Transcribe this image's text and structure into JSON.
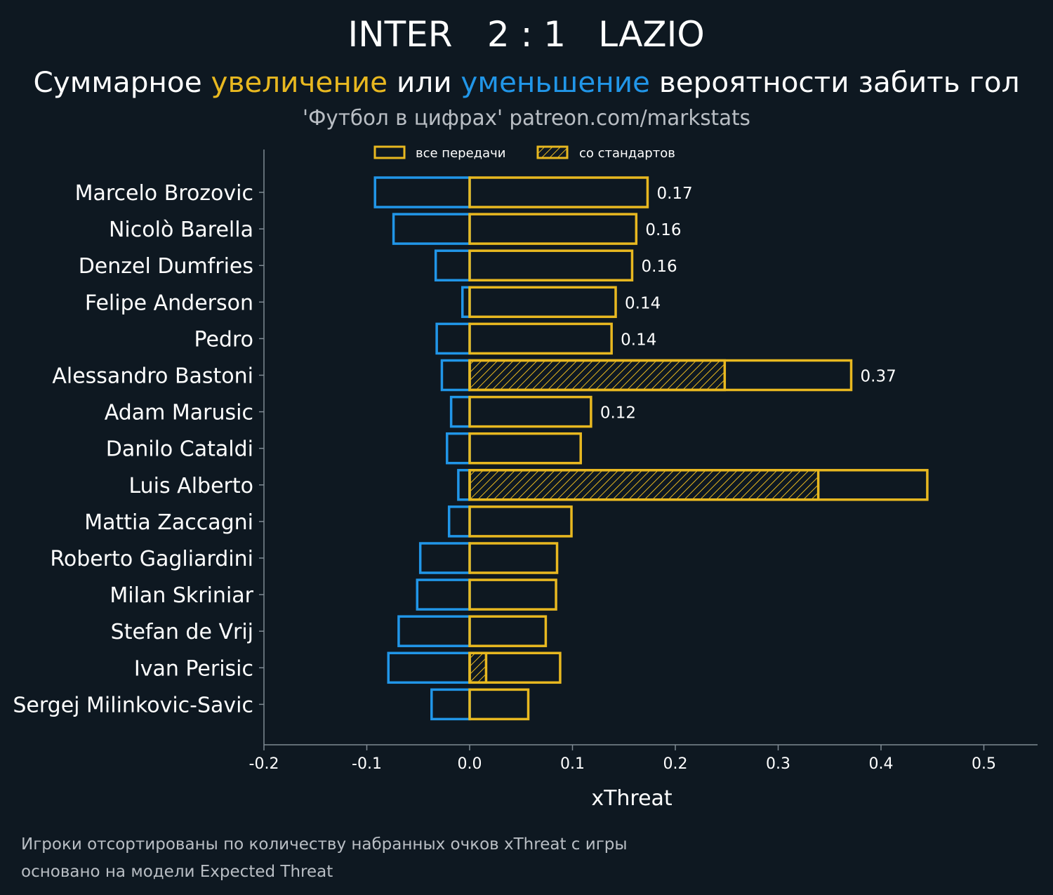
{
  "header": {
    "team_home": "INTER",
    "score": "2 : 1",
    "team_away": "LAZIO"
  },
  "subtitle": {
    "part1": "Суммарное ",
    "increase_word": "увеличение",
    "part2": " или ",
    "decrease_word": "уменьшение",
    "part3": " вероятности забить гол"
  },
  "source_text": "'Футбол в цифрах' patreon.com/markstats",
  "colors": {
    "background": "#0e1821",
    "positive": "#e8b820",
    "negative": "#2196e8",
    "axis": "#7f8a93",
    "muted_text": "#b9bec4"
  },
  "legend": {
    "all_passes": "все передачи",
    "set_pieces": "со стандартов"
  },
  "footnote": {
    "line1": "Игроки отсортированы по количеству набранных очков xThreat с игры",
    "line2": "основано на модели Expected Threat"
  },
  "chart_data": {
    "type": "bar",
    "orientation": "horizontal",
    "xlabel": "xThreat",
    "xlim": [
      -0.2,
      0.55
    ],
    "xticks": [
      -0.2,
      -0.1,
      0.0,
      0.1,
      0.2,
      0.3,
      0.4,
      0.5
    ],
    "xtick_labels": [
      "-0.2",
      "-0.1",
      "0.0",
      "0.1",
      "0.2",
      "0.3",
      "0.4",
      "0.5"
    ],
    "categories": [
      "Marcelo Brozovic",
      "Nicolò Barella",
      "Denzel Dumfries",
      "Felipe Anderson",
      "Pedro",
      "Alessandro Bastoni",
      "Adam Marusic",
      "Danilo Cataldi",
      "Luis Alberto",
      "Mattia Zaccagni",
      "Roberto Gagliardini",
      "Milan Skriniar",
      "Stefan de Vrij",
      "Ivan Perisic",
      "Sergej Milinkovic-Savic"
    ],
    "series": [
      {
        "name": "увеличение (все передачи)",
        "values": [
          0.173,
          0.162,
          0.158,
          0.142,
          0.138,
          0.371,
          0.118,
          0.108,
          0.445,
          0.099,
          0.085,
          0.084,
          0.074,
          0.088,
          0.057
        ]
      },
      {
        "name": "уменьшение",
        "values": [
          -0.092,
          -0.074,
          -0.033,
          -0.007,
          -0.032,
          -0.027,
          -0.018,
          -0.022,
          -0.011,
          -0.02,
          -0.048,
          -0.051,
          -0.069,
          -0.079,
          -0.037
        ]
      },
      {
        "name": "со стандартов",
        "values": [
          0,
          0,
          0,
          0,
          0,
          0.248,
          0,
          0,
          0.339,
          0,
          0,
          0,
          0,
          0.016,
          0
        ]
      }
    ],
    "value_labels": [
      "0.17",
      "0.16",
      "0.16",
      "0.14",
      "0.14",
      "0.37",
      "0.12",
      null,
      null,
      null,
      null,
      null,
      null,
      null,
      null
    ]
  }
}
